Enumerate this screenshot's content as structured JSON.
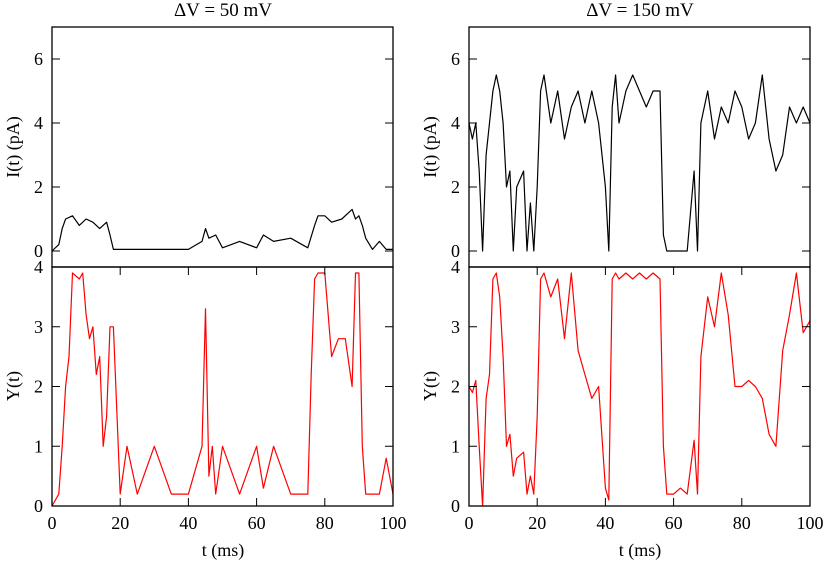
{
  "chart_data": [
    {
      "type": "line",
      "panel": "top-left",
      "title": "ΔV = 50 mV",
      "xlabel": "",
      "ylabel": "I(t)  (pA)",
      "xlim": [
        0,
        100
      ],
      "ylim": [
        -0.5,
        7
      ],
      "yticks": [
        "0",
        "2",
        "4",
        "6"
      ],
      "line_color": "#000000",
      "series": [
        {
          "name": "I(t)",
          "x": [
            0,
            2,
            3,
            4,
            6,
            8,
            10,
            12,
            14,
            16,
            17,
            18,
            20,
            25,
            30,
            35,
            40,
            44,
            45,
            46,
            48,
            50,
            55,
            60,
            62,
            65,
            70,
            75,
            77,
            78,
            80,
            82,
            85,
            87,
            88,
            89,
            90,
            91,
            92,
            94,
            96,
            98,
            100
          ],
          "y": [
            0,
            0.2,
            0.7,
            1.0,
            1.1,
            0.8,
            1.0,
            0.9,
            0.7,
            0.9,
            0.5,
            0.05,
            0.05,
            0.05,
            0.05,
            0.05,
            0.05,
            0.3,
            0.7,
            0.4,
            0.5,
            0.1,
            0.3,
            0.1,
            0.5,
            0.3,
            0.4,
            0.1,
            0.8,
            1.1,
            1.1,
            0.9,
            1.0,
            1.2,
            1.3,
            1.0,
            1.1,
            0.8,
            0.4,
            0.05,
            0.3,
            0.05,
            0.05
          ]
        }
      ]
    },
    {
      "type": "line",
      "panel": "top-right",
      "title": "ΔV = 150 mV",
      "xlabel": "",
      "ylabel": "I(t)  (pA)",
      "xlim": [
        0,
        100
      ],
      "ylim": [
        -0.5,
        7
      ],
      "yticks": [
        "0",
        "2",
        "4",
        "6"
      ],
      "line_color": "#000000",
      "series": [
        {
          "name": "I(t)",
          "x": [
            0,
            1,
            2,
            3,
            4,
            5,
            6,
            7,
            8,
            9,
            10,
            11,
            12,
            13,
            14,
            16,
            17,
            18,
            19,
            20,
            21,
            22,
            24,
            26,
            28,
            30,
            32,
            34,
            36,
            38,
            40,
            41,
            42,
            43,
            44,
            46,
            48,
            50,
            52,
            54,
            56,
            57,
            58,
            60,
            62,
            64,
            66,
            67,
            68,
            70,
            72,
            74,
            76,
            78,
            80,
            82,
            84,
            86,
            88,
            90,
            92,
            94,
            96,
            98,
            100
          ],
          "y": [
            4,
            3.5,
            4,
            2.5,
            0,
            3,
            4,
            5,
            5.5,
            5,
            4,
            2,
            2.5,
            0,
            2,
            2.5,
            0,
            1.5,
            0,
            2,
            5,
            5.5,
            4,
            5,
            3.5,
            4.5,
            5,
            4,
            5,
            4,
            2,
            0,
            4.5,
            5.5,
            4,
            5,
            5.5,
            5,
            4.5,
            5,
            5,
            0.5,
            0,
            0,
            0,
            0,
            2.5,
            0,
            4,
            5,
            3.5,
            4.5,
            4,
            5,
            4.5,
            3.5,
            4,
            5.5,
            3.5,
            2.5,
            3,
            4.5,
            4,
            4.5,
            4
          ]
        }
      ]
    },
    {
      "type": "line",
      "panel": "bottom-left",
      "title": "",
      "xlabel": "t  (ms)",
      "ylabel": "Y(t)",
      "xlim": [
        0,
        100
      ],
      "ylim": [
        0,
        4
      ],
      "xticks": [
        "0",
        "20",
        "40",
        "60",
        "80",
        "100"
      ],
      "yticks": [
        "0",
        "1",
        "2",
        "3",
        "4"
      ],
      "line_color": "#ff0000",
      "series": [
        {
          "name": "Y(t)",
          "x": [
            0,
            2,
            3,
            4,
            5,
            6,
            8,
            9,
            10,
            11,
            12,
            13,
            14,
            15,
            16,
            17,
            18,
            20,
            22,
            25,
            30,
            35,
            40,
            44,
            45,
            46,
            47,
            48,
            50,
            55,
            60,
            62,
            65,
            70,
            75,
            76,
            77,
            78,
            80,
            82,
            84,
            86,
            88,
            89,
            90,
            91,
            92,
            94,
            96,
            98,
            100
          ],
          "y": [
            0,
            0.2,
            1,
            2,
            2.5,
            3.9,
            3.8,
            3.9,
            3.2,
            2.8,
            3,
            2.2,
            2.5,
            1,
            1.5,
            3,
            3,
            0.2,
            1,
            0.2,
            1,
            0.2,
            0.2,
            1,
            3.3,
            0.5,
            1,
            0.2,
            1,
            0.2,
            1,
            0.3,
            1,
            0.2,
            0.2,
            2.2,
            3.8,
            3.9,
            3.9,
            2.5,
            2.8,
            2.8,
            2,
            3.9,
            3.9,
            1,
            0.2,
            0.2,
            0.2,
            0.8,
            0.2
          ]
        }
      ]
    },
    {
      "type": "line",
      "panel": "bottom-right",
      "title": "",
      "xlabel": "t  (ms)",
      "ylabel": "Y(t)",
      "xlim": [
        0,
        100
      ],
      "ylim": [
        0,
        4
      ],
      "xticks": [
        "0",
        "20",
        "40",
        "60",
        "80",
        "100"
      ],
      "yticks": [
        "0",
        "1",
        "2",
        "3",
        "4"
      ],
      "line_color": "#ff0000",
      "series": [
        {
          "name": "Y(t)",
          "x": [
            0,
            1,
            2,
            3,
            4,
            5,
            6,
            7,
            8,
            9,
            10,
            11,
            12,
            13,
            14,
            16,
            17,
            18,
            19,
            20,
            21,
            22,
            24,
            26,
            28,
            30,
            32,
            34,
            36,
            38,
            40,
            41,
            42,
            43,
            44,
            46,
            48,
            50,
            52,
            54,
            56,
            57,
            58,
            60,
            62,
            64,
            66,
            67,
            68,
            70,
            72,
            74,
            76,
            78,
            80,
            82,
            84,
            86,
            88,
            90,
            92,
            94,
            96,
            98,
            100
          ],
          "y": [
            2,
            1.9,
            2.1,
            1,
            0,
            1.8,
            2.2,
            3.8,
            3.9,
            3.5,
            2.5,
            1,
            1.2,
            0.5,
            0.8,
            0.9,
            0.2,
            0.5,
            0.2,
            1.5,
            3.8,
            3.9,
            3.5,
            3.8,
            2.8,
            3.9,
            2.6,
            2.2,
            1.8,
            2,
            0.3,
            0.1,
            3.8,
            3.9,
            3.8,
            3.9,
            3.8,
            3.9,
            3.8,
            3.9,
            3.8,
            1,
            0.2,
            0.2,
            0.3,
            0.2,
            1.1,
            0.2,
            2.5,
            3.5,
            3,
            3.9,
            3.2,
            2,
            2,
            2.1,
            2,
            1.8,
            1.2,
            1,
            2.6,
            3.2,
            3.9,
            2.9,
            3.1
          ]
        }
      ]
    }
  ]
}
